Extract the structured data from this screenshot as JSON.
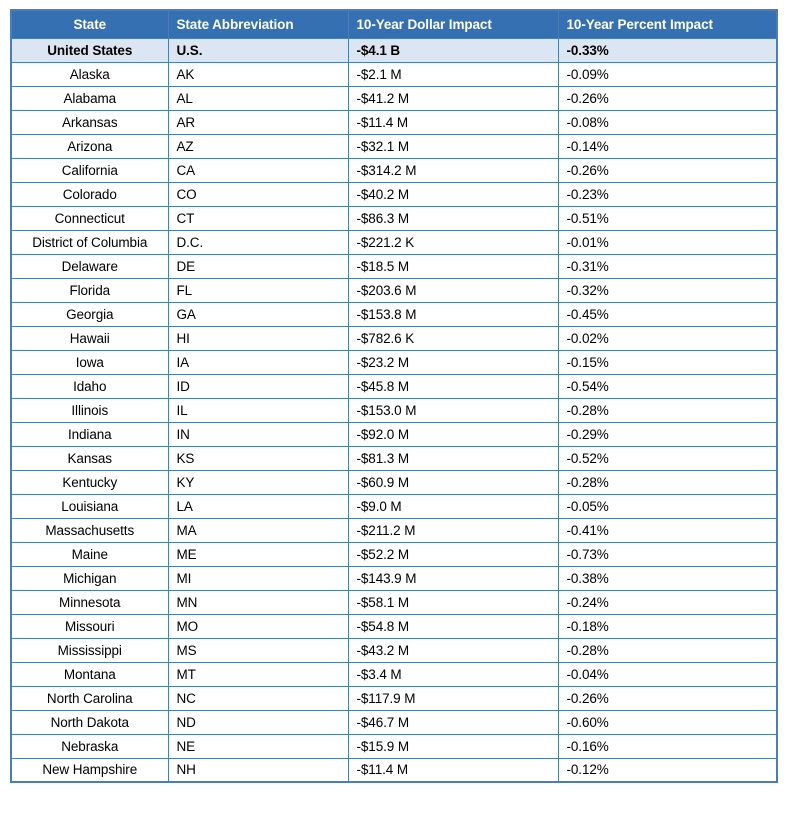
{
  "colors": {
    "header_bg": "#3470B2",
    "header_text": "#FFFFFF",
    "border": "#4A7EBB",
    "highlight_row_bg": "#DCE6F2",
    "row_bg": "#FFFFFF",
    "text": "#000000",
    "page_bg": "#FFFFFF"
  },
  "table": {
    "headers": [
      "State",
      "State Abbreviation",
      "10-Year Dollar Impact",
      "10-Year Percent Impact"
    ],
    "rows": [
      {
        "state": "United States",
        "abbr": "U.S.",
        "dollar": "-$4.1 B",
        "percent": "-0.33%",
        "highlight": true
      },
      {
        "state": "Alaska",
        "abbr": "AK",
        "dollar": "-$2.1 M",
        "percent": "-0.09%",
        "highlight": false
      },
      {
        "state": "Alabama",
        "abbr": "AL",
        "dollar": "-$41.2 M",
        "percent": "-0.26%",
        "highlight": false
      },
      {
        "state": "Arkansas",
        "abbr": "AR",
        "dollar": "-$11.4 M",
        "percent": "-0.08%",
        "highlight": false
      },
      {
        "state": "Arizona",
        "abbr": "AZ",
        "dollar": "-$32.1 M",
        "percent": "-0.14%",
        "highlight": false
      },
      {
        "state": "California",
        "abbr": "CA",
        "dollar": "-$314.2 M",
        "percent": "-0.26%",
        "highlight": false
      },
      {
        "state": "Colorado",
        "abbr": "CO",
        "dollar": "-$40.2 M",
        "percent": "-0.23%",
        "highlight": false
      },
      {
        "state": "Connecticut",
        "abbr": "CT",
        "dollar": "-$86.3 M",
        "percent": "-0.51%",
        "highlight": false
      },
      {
        "state": "District of Columbia",
        "abbr": "D.C.",
        "dollar": "-$221.2 K",
        "percent": "-0.01%",
        "highlight": false
      },
      {
        "state": "Delaware",
        "abbr": "DE",
        "dollar": "-$18.5 M",
        "percent": "-0.31%",
        "highlight": false
      },
      {
        "state": "Florida",
        "abbr": "FL",
        "dollar": "-$203.6 M",
        "percent": "-0.32%",
        "highlight": false
      },
      {
        "state": "Georgia",
        "abbr": "GA",
        "dollar": "-$153.8 M",
        "percent": "-0.45%",
        "highlight": false
      },
      {
        "state": "Hawaii",
        "abbr": "HI",
        "dollar": "-$782.6 K",
        "percent": "-0.02%",
        "highlight": false
      },
      {
        "state": "Iowa",
        "abbr": "IA",
        "dollar": "-$23.2 M",
        "percent": "-0.15%",
        "highlight": false
      },
      {
        "state": "Idaho",
        "abbr": "ID",
        "dollar": "-$45.8 M",
        "percent": "-0.54%",
        "highlight": false
      },
      {
        "state": "Illinois",
        "abbr": "IL",
        "dollar": "-$153.0 M",
        "percent": "-0.28%",
        "highlight": false
      },
      {
        "state": "Indiana",
        "abbr": "IN",
        "dollar": "-$92.0 M",
        "percent": "-0.29%",
        "highlight": false
      },
      {
        "state": "Kansas",
        "abbr": "KS",
        "dollar": "-$81.3 M",
        "percent": "-0.52%",
        "highlight": false
      },
      {
        "state": "Kentucky",
        "abbr": "KY",
        "dollar": "-$60.9 M",
        "percent": "-0.28%",
        "highlight": false
      },
      {
        "state": "Louisiana",
        "abbr": "LA",
        "dollar": "-$9.0 M",
        "percent": "-0.05%",
        "highlight": false
      },
      {
        "state": "Massachusetts",
        "abbr": "MA",
        "dollar": "-$211.2 M",
        "percent": "-0.41%",
        "highlight": false
      },
      {
        "state": "Maine",
        "abbr": "ME",
        "dollar": "-$52.2 M",
        "percent": "-0.73%",
        "highlight": false
      },
      {
        "state": "Michigan",
        "abbr": "MI",
        "dollar": "-$143.9 M",
        "percent": "-0.38%",
        "highlight": false
      },
      {
        "state": "Minnesota",
        "abbr": "MN",
        "dollar": "-$58.1 M",
        "percent": "-0.24%",
        "highlight": false
      },
      {
        "state": "Missouri",
        "abbr": "MO",
        "dollar": "-$54.8 M",
        "percent": "-0.18%",
        "highlight": false
      },
      {
        "state": "Mississippi",
        "abbr": "MS",
        "dollar": "-$43.2 M",
        "percent": "-0.28%",
        "highlight": false
      },
      {
        "state": "Montana",
        "abbr": "MT",
        "dollar": "-$3.4 M",
        "percent": "-0.04%",
        "highlight": false
      },
      {
        "state": "North Carolina",
        "abbr": "NC",
        "dollar": "-$117.9 M",
        "percent": "-0.26%",
        "highlight": false
      },
      {
        "state": "North Dakota",
        "abbr": "ND",
        "dollar": "-$46.7 M",
        "percent": "-0.60%",
        "highlight": false
      },
      {
        "state": "Nebraska",
        "abbr": "NE",
        "dollar": "-$15.9 M",
        "percent": "-0.16%",
        "highlight": false
      },
      {
        "state": "New Hampshire",
        "abbr": "NH",
        "dollar": "-$11.4 M",
        "percent": "-0.12%",
        "highlight": false
      }
    ]
  },
  "chart_data": {
    "type": "table",
    "columns": [
      "State",
      "State Abbreviation",
      "10-Year Dollar Impact",
      "10-Year Percent Impact"
    ],
    "rows": [
      [
        "United States",
        "U.S.",
        "-$4.1 B",
        "-0.33%"
      ],
      [
        "Alaska",
        "AK",
        "-$2.1 M",
        "-0.09%"
      ],
      [
        "Alabama",
        "AL",
        "-$41.2 M",
        "-0.26%"
      ],
      [
        "Arkansas",
        "AR",
        "-$11.4 M",
        "-0.08%"
      ],
      [
        "Arizona",
        "AZ",
        "-$32.1 M",
        "-0.14%"
      ],
      [
        "California",
        "CA",
        "-$314.2 M",
        "-0.26%"
      ],
      [
        "Colorado",
        "CO",
        "-$40.2 M",
        "-0.23%"
      ],
      [
        "Connecticut",
        "CT",
        "-$86.3 M",
        "-0.51%"
      ],
      [
        "District of Columbia",
        "D.C.",
        "-$221.2 K",
        "-0.01%"
      ],
      [
        "Delaware",
        "DE",
        "-$18.5 M",
        "-0.31%"
      ],
      [
        "Florida",
        "FL",
        "-$203.6 M",
        "-0.32%"
      ],
      [
        "Georgia",
        "GA",
        "-$153.8 M",
        "-0.45%"
      ],
      [
        "Hawaii",
        "HI",
        "-$782.6 K",
        "-0.02%"
      ],
      [
        "Iowa",
        "IA",
        "-$23.2 M",
        "-0.15%"
      ],
      [
        "Idaho",
        "ID",
        "-$45.8 M",
        "-0.54%"
      ],
      [
        "Illinois",
        "IL",
        "-$153.0 M",
        "-0.28%"
      ],
      [
        "Indiana",
        "IN",
        "-$92.0 M",
        "-0.29%"
      ],
      [
        "Kansas",
        "KS",
        "-$81.3 M",
        "-0.52%"
      ],
      [
        "Kentucky",
        "KY",
        "-$60.9 M",
        "-0.28%"
      ],
      [
        "Louisiana",
        "LA",
        "-$9.0 M",
        "-0.05%"
      ],
      [
        "Massachusetts",
        "MA",
        "-$211.2 M",
        "-0.41%"
      ],
      [
        "Maine",
        "ME",
        "-$52.2 M",
        "-0.73%"
      ],
      [
        "Michigan",
        "MI",
        "-$143.9 M",
        "-0.38%"
      ],
      [
        "Minnesota",
        "MN",
        "-$58.1 M",
        "-0.24%"
      ],
      [
        "Missouri",
        "MO",
        "-$54.8 M",
        "-0.18%"
      ],
      [
        "Mississippi",
        "MS",
        "-$43.2 M",
        "-0.28%"
      ],
      [
        "Montana",
        "MT",
        "-$3.4 M",
        "-0.04%"
      ],
      [
        "North Carolina",
        "NC",
        "-$117.9 M",
        "-0.26%"
      ],
      [
        "North Dakota",
        "ND",
        "-$46.7 M",
        "-0.60%"
      ],
      [
        "Nebraska",
        "NE",
        "-$15.9 M",
        "-0.16%"
      ],
      [
        "New Hampshire",
        "NH",
        "-$11.4 M",
        "-0.12%"
      ]
    ]
  }
}
